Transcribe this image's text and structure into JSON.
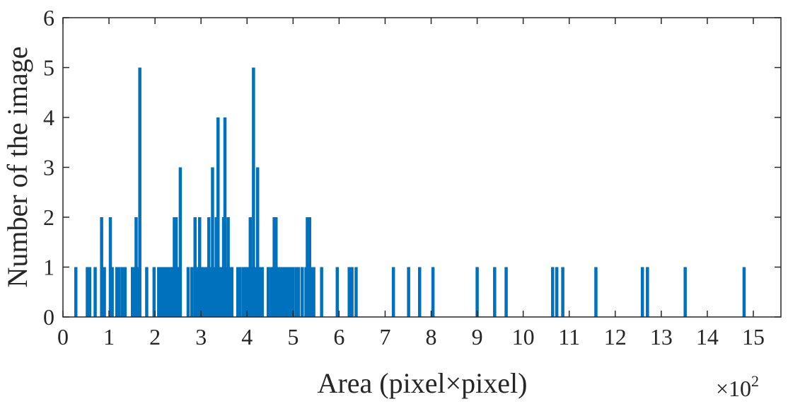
{
  "chart_data": {
    "type": "bar",
    "title": "",
    "xlabel": "Area (pixel×pixel)",
    "ylabel": "Number of the image",
    "x_multiplier_label": "×10",
    "x_multiplier_exponent": "2",
    "xlim": [
      0,
      15.6
    ],
    "ylim": [
      0,
      6
    ],
    "x_ticks": [
      "0",
      "1",
      "2",
      "3",
      "4",
      "5",
      "6",
      "7",
      "8",
      "9",
      "10",
      "11",
      "12",
      "13",
      "14",
      "15"
    ],
    "y_ticks": [
      "0",
      "1",
      "2",
      "3",
      "4",
      "5",
      "6"
    ],
    "grid": false,
    "bar_color": "#0072BD",
    "points": [
      {
        "x": 0.28,
        "y": 1
      },
      {
        "x": 0.53,
        "y": 1
      },
      {
        "x": 0.58,
        "y": 1
      },
      {
        "x": 0.7,
        "y": 1
      },
      {
        "x": 0.84,
        "y": 2
      },
      {
        "x": 0.9,
        "y": 1
      },
      {
        "x": 1.03,
        "y": 2
      },
      {
        "x": 1.07,
        "y": 1
      },
      {
        "x": 1.17,
        "y": 1
      },
      {
        "x": 1.22,
        "y": 1
      },
      {
        "x": 1.29,
        "y": 1
      },
      {
        "x": 1.35,
        "y": 1
      },
      {
        "x": 1.51,
        "y": 1
      },
      {
        "x": 1.56,
        "y": 1
      },
      {
        "x": 1.59,
        "y": 2
      },
      {
        "x": 1.63,
        "y": 1
      },
      {
        "x": 1.67,
        "y": 5
      },
      {
        "x": 1.82,
        "y": 1
      },
      {
        "x": 1.98,
        "y": 1
      },
      {
        "x": 2.08,
        "y": 1
      },
      {
        "x": 2.13,
        "y": 1
      },
      {
        "x": 2.18,
        "y": 1
      },
      {
        "x": 2.23,
        "y": 1
      },
      {
        "x": 2.28,
        "y": 1
      },
      {
        "x": 2.33,
        "y": 1
      },
      {
        "x": 2.38,
        "y": 1
      },
      {
        "x": 2.42,
        "y": 2
      },
      {
        "x": 2.46,
        "y": 2
      },
      {
        "x": 2.51,
        "y": 1
      },
      {
        "x": 2.55,
        "y": 3
      },
      {
        "x": 2.72,
        "y": 1
      },
      {
        "x": 2.8,
        "y": 1
      },
      {
        "x": 2.87,
        "y": 2
      },
      {
        "x": 2.93,
        "y": 1
      },
      {
        "x": 2.97,
        "y": 2
      },
      {
        "x": 3.03,
        "y": 1
      },
      {
        "x": 3.08,
        "y": 1
      },
      {
        "x": 3.13,
        "y": 1
      },
      {
        "x": 3.17,
        "y": 2
      },
      {
        "x": 3.22,
        "y": 1
      },
      {
        "x": 3.25,
        "y": 3
      },
      {
        "x": 3.29,
        "y": 1
      },
      {
        "x": 3.33,
        "y": 2
      },
      {
        "x": 3.37,
        "y": 4
      },
      {
        "x": 3.41,
        "y": 1
      },
      {
        "x": 3.45,
        "y": 1
      },
      {
        "x": 3.49,
        "y": 2
      },
      {
        "x": 3.52,
        "y": 4
      },
      {
        "x": 3.56,
        "y": 1
      },
      {
        "x": 3.59,
        "y": 2
      },
      {
        "x": 3.63,
        "y": 1
      },
      {
        "x": 3.67,
        "y": 1
      },
      {
        "x": 3.8,
        "y": 1
      },
      {
        "x": 3.85,
        "y": 1
      },
      {
        "x": 3.92,
        "y": 1
      },
      {
        "x": 3.97,
        "y": 1
      },
      {
        "x": 4.02,
        "y": 1
      },
      {
        "x": 4.07,
        "y": 2
      },
      {
        "x": 4.11,
        "y": 1
      },
      {
        "x": 4.14,
        "y": 5
      },
      {
        "x": 4.19,
        "y": 1
      },
      {
        "x": 4.23,
        "y": 3
      },
      {
        "x": 4.27,
        "y": 1
      },
      {
        "x": 4.33,
        "y": 1
      },
      {
        "x": 4.46,
        "y": 1
      },
      {
        "x": 4.53,
        "y": 1
      },
      {
        "x": 4.59,
        "y": 2
      },
      {
        "x": 4.63,
        "y": 2
      },
      {
        "x": 4.67,
        "y": 1
      },
      {
        "x": 4.73,
        "y": 1
      },
      {
        "x": 4.78,
        "y": 1
      },
      {
        "x": 4.84,
        "y": 1
      },
      {
        "x": 4.9,
        "y": 1
      },
      {
        "x": 4.95,
        "y": 1
      },
      {
        "x": 5.0,
        "y": 1
      },
      {
        "x": 5.07,
        "y": 1
      },
      {
        "x": 5.12,
        "y": 1
      },
      {
        "x": 5.2,
        "y": 1
      },
      {
        "x": 5.28,
        "y": 1
      },
      {
        "x": 5.31,
        "y": 2
      },
      {
        "x": 5.36,
        "y": 2
      },
      {
        "x": 5.4,
        "y": 1
      },
      {
        "x": 5.45,
        "y": 1
      },
      {
        "x": 5.62,
        "y": 1
      },
      {
        "x": 5.96,
        "y": 1
      },
      {
        "x": 6.22,
        "y": 1
      },
      {
        "x": 6.28,
        "y": 1
      },
      {
        "x": 6.37,
        "y": 1
      },
      {
        "x": 7.18,
        "y": 1
      },
      {
        "x": 7.51,
        "y": 1
      },
      {
        "x": 7.75,
        "y": 1
      },
      {
        "x": 8.04,
        "y": 1
      },
      {
        "x": 9.0,
        "y": 1
      },
      {
        "x": 9.38,
        "y": 1
      },
      {
        "x": 9.63,
        "y": 1
      },
      {
        "x": 10.64,
        "y": 1
      },
      {
        "x": 10.73,
        "y": 1
      },
      {
        "x": 10.86,
        "y": 1
      },
      {
        "x": 11.58,
        "y": 1
      },
      {
        "x": 12.59,
        "y": 1
      },
      {
        "x": 12.7,
        "y": 1
      },
      {
        "x": 13.52,
        "y": 1
      },
      {
        "x": 14.8,
        "y": 1
      }
    ]
  }
}
